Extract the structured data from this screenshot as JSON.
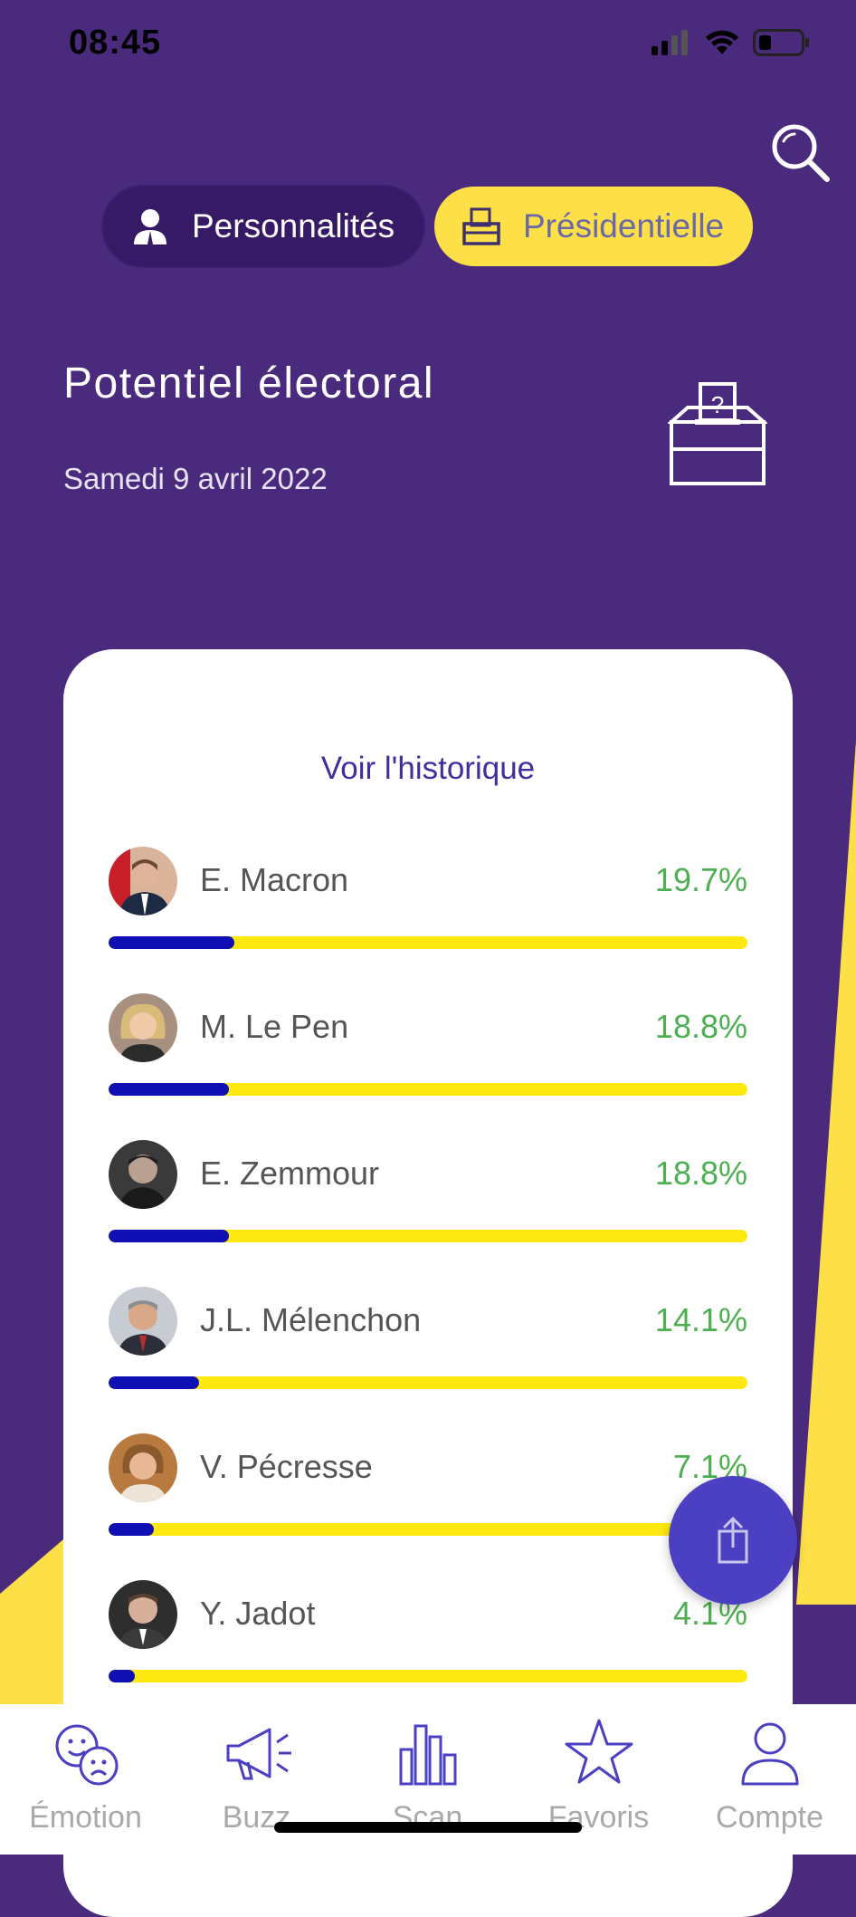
{
  "status": {
    "time": "08:45"
  },
  "segments": [
    {
      "label": "Personnalités",
      "active": false
    },
    {
      "label": "Présidentielle",
      "active": true
    }
  ],
  "page": {
    "title": "Potentiel électoral",
    "date": "Samedi 9 avril 2022"
  },
  "card": {
    "history_link": "Voir l'historique",
    "candidates": [
      {
        "name": "E. Macron",
        "pct": "19.7%",
        "value": 19.7
      },
      {
        "name": "M. Le Pen",
        "pct": "18.8%",
        "value": 18.8
      },
      {
        "name": "E. Zemmour",
        "pct": "18.8%",
        "value": 18.8
      },
      {
        "name": "J.L. Mélenchon",
        "pct": "14.1%",
        "value": 14.1
      },
      {
        "name": "V. Pécresse",
        "pct": "7.1%",
        "value": 7.1
      },
      {
        "name": "Y. Jadot",
        "pct": "4.1%",
        "value": 4.1
      }
    ]
  },
  "tabs": [
    {
      "label": "Émotion",
      "icon": "emotion-icon"
    },
    {
      "label": "Buzz",
      "icon": "megaphone-icon"
    },
    {
      "label": "Scan",
      "icon": "bar-chart-icon"
    },
    {
      "label": "Favoris",
      "icon": "star-icon"
    },
    {
      "label": "Compte",
      "icon": "user-icon"
    }
  ],
  "colors": {
    "background": "#4a2a7d",
    "accent_yellow": "#fde047",
    "bar_fill": "#0f0fb4",
    "bar_track": "#fde910",
    "percent_green": "#4caf50",
    "fab": "#4b3fc2"
  }
}
